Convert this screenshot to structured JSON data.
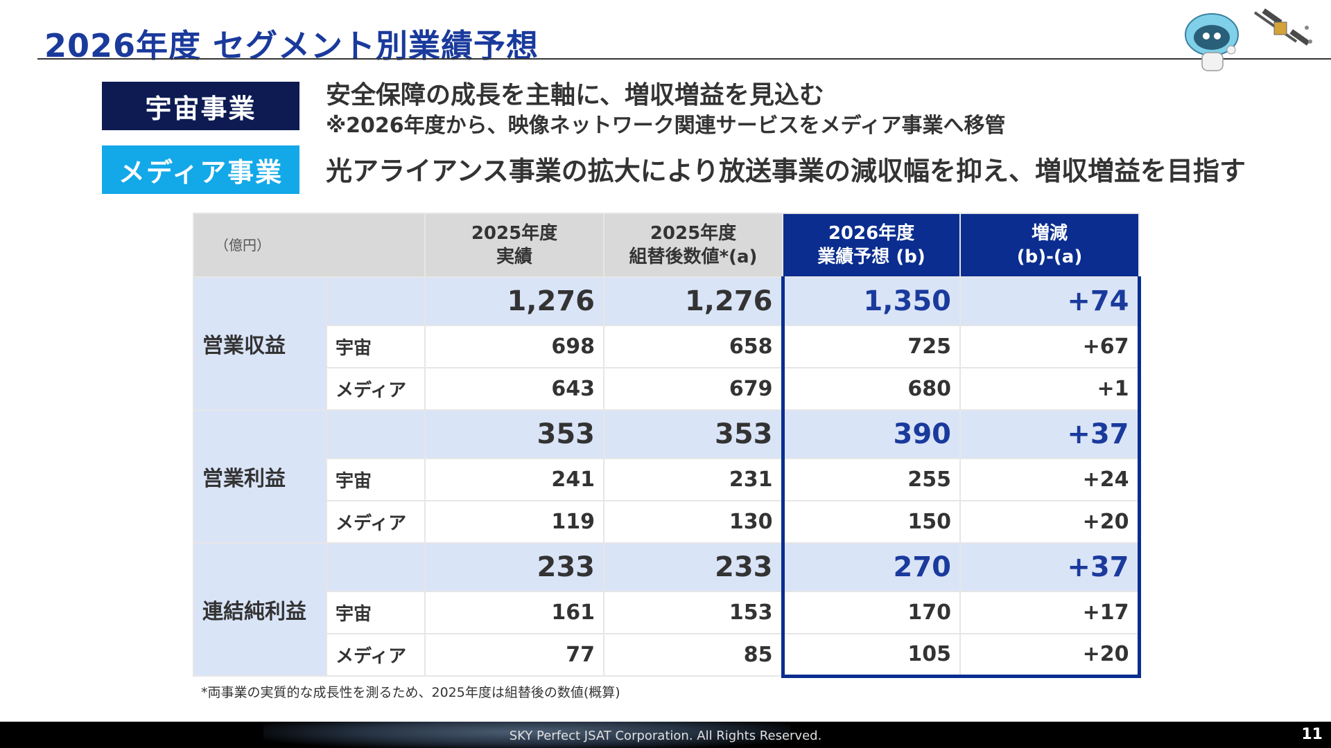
{
  "title": "2026年度 セグメント別業績予想",
  "segments": {
    "space": {
      "label": "宇宙事業",
      "headline": "安全保障の成長を主軸に、増収増益を見込む",
      "note": "※2026年度から、映像ネットワーク関連サービスをメディア事業へ移管"
    },
    "media": {
      "label": "メディア事業",
      "headline": "光アライアンス事業の拡大により放送事業の減収幅を抑え、増収増益を目指す"
    }
  },
  "table": {
    "unit": "（億円）",
    "headers": {
      "col1": {
        "line1": "2025年度",
        "line2": "実績"
      },
      "col2": {
        "line1": "2025年度",
        "line2": "組替後数値*(a)"
      },
      "col3": {
        "line1": "2026年度",
        "line2": "業績予想 (b)"
      },
      "col4": {
        "line1": "増減",
        "line2": "(b)-(a)"
      }
    },
    "groups": [
      {
        "label": "営業収益",
        "total": [
          "1,276",
          "1,276",
          "1,350",
          "+74"
        ],
        "rows": [
          {
            "label": "宇宙",
            "values": [
              "698",
              "658",
              "725",
              "+67"
            ]
          },
          {
            "label": "メディア",
            "values": [
              "643",
              "679",
              "680",
              "+1"
            ]
          }
        ]
      },
      {
        "label": "営業利益",
        "total": [
          "353",
          "353",
          "390",
          "+37"
        ],
        "rows": [
          {
            "label": "宇宙",
            "values": [
              "241",
              "231",
              "255",
              "+24"
            ]
          },
          {
            "label": "メディア",
            "values": [
              "119",
              "130",
              "150",
              "+20"
            ]
          }
        ]
      },
      {
        "label": "連結純利益",
        "total": [
          "233",
          "233",
          "270",
          "+37"
        ],
        "rows": [
          {
            "label": "宇宙",
            "values": [
              "161",
              "153",
              "170",
              "+17"
            ]
          },
          {
            "label": "メディア",
            "values": [
              "77",
              "85",
              "105",
              "+20"
            ]
          }
        ]
      }
    ]
  },
  "footnote": "*両事業の実質的な成長性を測るため、2025年度は組替後の数値(概算)",
  "footer": {
    "copyright": "SKY Perfect JSAT Corporation. All Rights Reserved.",
    "page_number": "11"
  },
  "colors": {
    "title": "#1a3a9c",
    "space_label_bg": "#0d1b52",
    "media_label_bg": "#13a8e8",
    "forecast_header_bg": "#0a2d8f",
    "total_row_bg": "#dae4f7"
  }
}
